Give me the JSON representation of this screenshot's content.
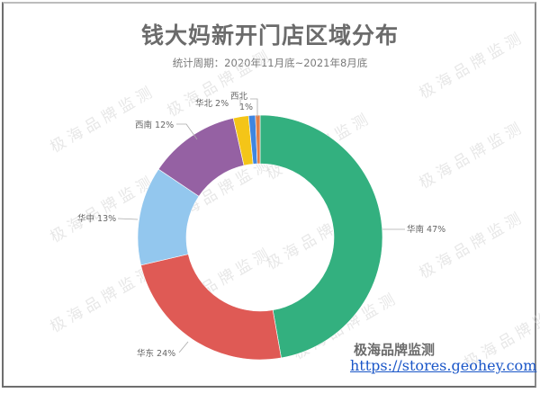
{
  "header": {
    "title": "钱大妈新开门店区域分布",
    "subtitle": "统计周期：2020年11月底~2021年8月底"
  },
  "watermark": "极海品牌监测",
  "footer": {
    "brand": "极海品牌监测",
    "url": "https://stores.geohey.com"
  },
  "chart_data": {
    "type": "pie",
    "variant": "donut",
    "title": "钱大妈新开门店区域分布",
    "subtitle": "统计周期：2020年11月底~2021年8月底",
    "start_angle": "12 o'clock, clockwise",
    "categories": [
      "华南",
      "华东",
      "华中",
      "西南",
      "华北",
      "",
      "西北"
    ],
    "values": [
      47,
      24,
      13,
      12,
      2,
      1,
      1
    ],
    "labels": [
      "华南 47%",
      "华东 24%",
      "华中 13%",
      "西南 12%",
      "华北 2%",
      "",
      "西北 1%"
    ],
    "colors": [
      "#33b07f",
      "#df5a55",
      "#93c7ee",
      "#9561a3",
      "#f4c518",
      "#3f86e0",
      "#e07f4a"
    ],
    "legend": "none"
  }
}
